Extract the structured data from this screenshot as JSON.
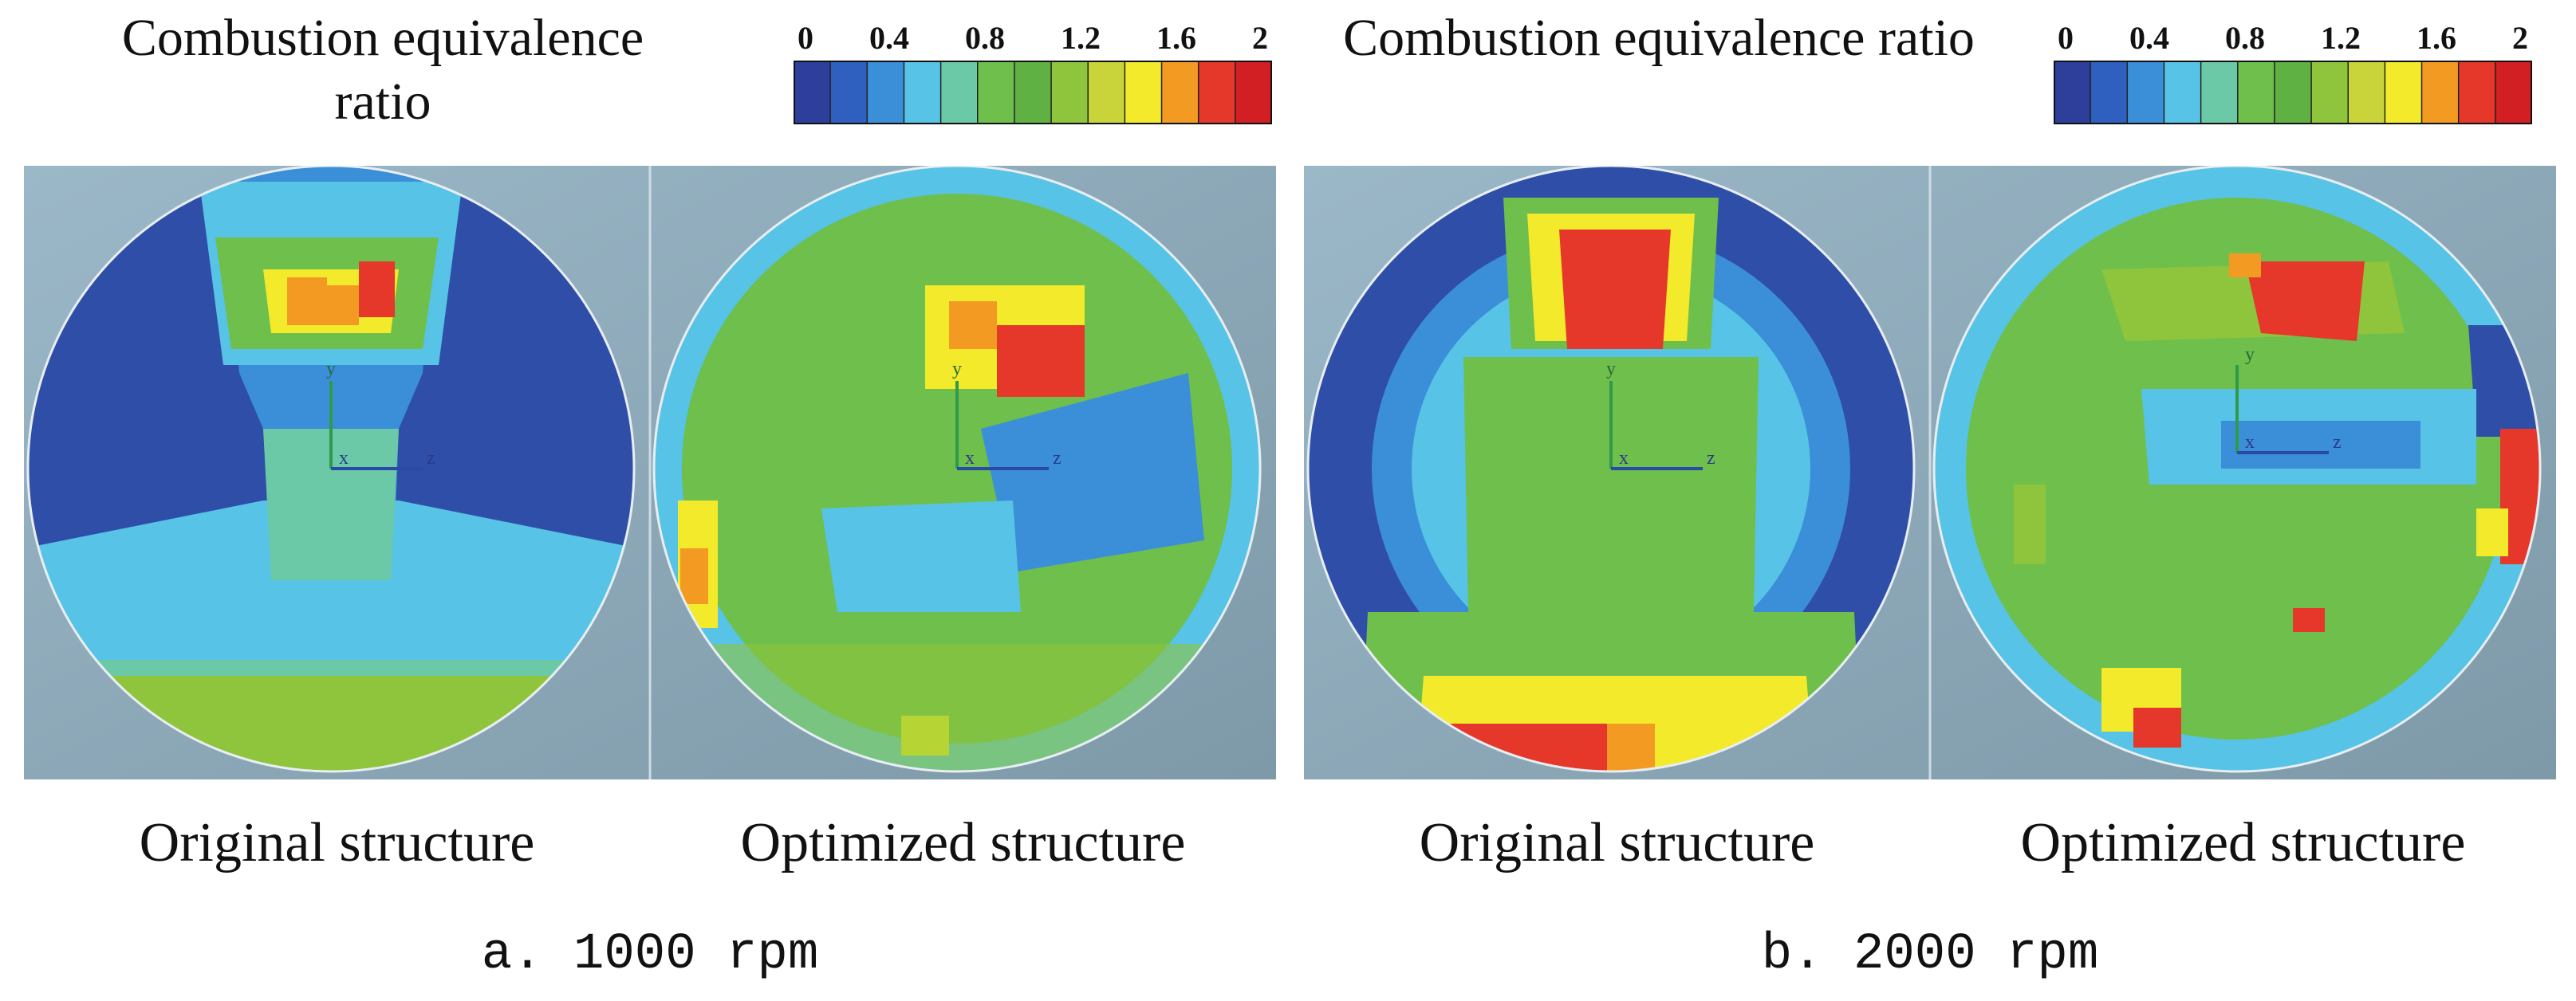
{
  "figure": {
    "legend_title": "Combustion equivalence ratio",
    "colorbar_ticks": [
      "0",
      "0.4",
      "0.8",
      "1.2",
      "1.6",
      "2"
    ],
    "colorbar_colors": [
      "#2d3f9a",
      "#2f5fbf",
      "#3a8fd8",
      "#57c3e6",
      "#6cc9a8",
      "#6ebf4c",
      "#5fb143",
      "#8ec53c",
      "#c9d43a",
      "#f2ea2a",
      "#f39a22",
      "#e5382b",
      "#d21f24"
    ],
    "axis_labels": {
      "y": "y",
      "x": "x",
      "z": "z"
    },
    "panels": [
      {
        "caption": "a. 1000 rpm",
        "images": [
          {
            "label": "Original structure"
          },
          {
            "label": "Optimized structure"
          }
        ]
      },
      {
        "caption": "b. 2000 rpm",
        "images": [
          {
            "label": "Original structure"
          },
          {
            "label": "Optimized structure"
          }
        ]
      }
    ]
  }
}
